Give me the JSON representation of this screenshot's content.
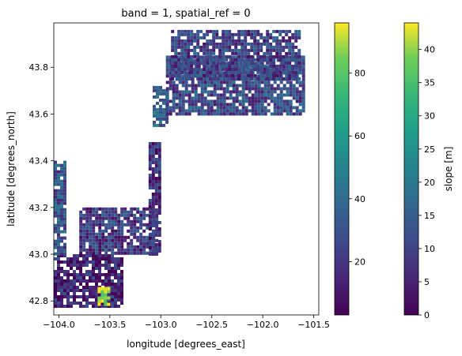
{
  "chart_data": {
    "type": "heatmap",
    "title": "band = 1, spatial_ref = 0",
    "xlabel": "longitude [degrees_east]",
    "ylabel": "latitude [degrees_north]",
    "xlim": [
      -104.05,
      -101.45
    ],
    "ylim": [
      42.74,
      43.99
    ],
    "x_ticks": [
      -104.0,
      -103.5,
      -103.0,
      -102.5,
      -102.0,
      -101.5
    ],
    "x_tick_labels": [
      "−104.0",
      "−103.5",
      "−103.0",
      "−102.5",
      "−102.0",
      "−101.5"
    ],
    "y_ticks": [
      42.8,
      43.0,
      43.2,
      43.4,
      43.6,
      43.8
    ],
    "y_tick_labels": [
      "42.8",
      "43.0",
      "43.2",
      "43.4",
      "43.6",
      "43.8"
    ],
    "grid": false,
    "colormap": "viridis",
    "colorbars": [
      {
        "label": "",
        "range": [
          3,
          96
        ],
        "ticks": [
          20,
          40,
          60,
          80
        ],
        "tick_labels": [
          "20",
          "40",
          "60",
          "80"
        ]
      },
      {
        "label": "slope [m]",
        "range": [
          0,
          44
        ],
        "ticks": [
          0,
          5,
          10,
          15,
          20,
          25,
          30,
          35,
          40
        ],
        "tick_labels": [
          "0",
          "5",
          "10",
          "15",
          "20",
          "25",
          "30",
          "35",
          "40"
        ]
      }
    ],
    "data_regions": [
      {
        "lon": [
          -104.05,
          -103.37
        ],
        "lat": [
          42.78,
          43.0
        ],
        "level": 0.12
      },
      {
        "lon": [
          -104.05,
          -103.95
        ],
        "lat": [
          43.0,
          43.4
        ],
        "level": 0.3
      },
      {
        "lon": [
          -103.8,
          -103.05
        ],
        "lat": [
          43.0,
          43.2
        ],
        "level": 0.2
      },
      {
        "lon": [
          -103.12,
          -103.02
        ],
        "lat": [
          43.0,
          43.48
        ],
        "level": 0.15
      },
      {
        "lon": [
          -103.08,
          -102.95
        ],
        "lat": [
          43.55,
          43.72
        ],
        "level": 0.35
      },
      {
        "lon": [
          -102.95,
          -101.6
        ],
        "lat": [
          43.6,
          43.85
        ],
        "level": 0.25
      },
      {
        "lon": [
          -102.9,
          -101.65
        ],
        "lat": [
          43.75,
          43.96
        ],
        "level": 0.22
      },
      {
        "lon": [
          -103.62,
          -103.5
        ],
        "lat": [
          42.78,
          42.86
        ],
        "level": 0.95
      }
    ]
  }
}
